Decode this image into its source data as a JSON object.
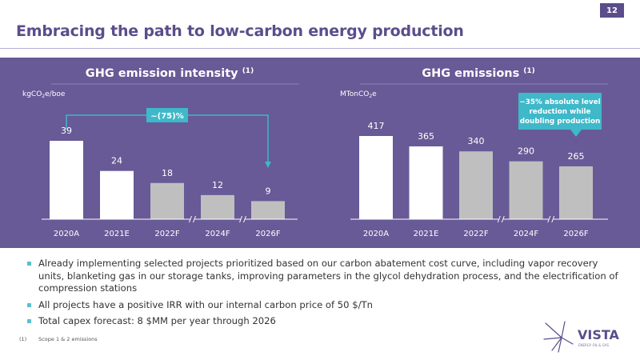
{
  "page": {
    "number": "12",
    "title": "Embracing the path to low-carbon energy production"
  },
  "chart_data": [
    {
      "type": "bar",
      "title": "GHG emission intensity",
      "title_note": "(1)",
      "unit": "kgCO",
      "unit_sub": "2",
      "unit_suffix": "e/boe",
      "categories": [
        "2020A",
        "2021E",
        "2022F",
        "2024F",
        "2026F"
      ],
      "values": [
        39,
        24,
        18,
        12,
        9
      ],
      "ylim": [
        0,
        39
      ],
      "bar_colors": [
        "#ffffff",
        "#ffffff",
        "#bfbfbf",
        "#bfbfbf",
        "#bfbfbf"
      ],
      "axis_breaks_after": [
        2,
        3
      ],
      "annotation": "~(75)%"
    },
    {
      "type": "bar",
      "title": "GHG emissions",
      "title_note": "(1)",
      "unit": "MTonCO",
      "unit_sub": "2",
      "unit_suffix": "e",
      "categories": [
        "2020A",
        "2021E",
        "2022F",
        "2024F",
        "2026F"
      ],
      "values": [
        417,
        365,
        340,
        290,
        265
      ],
      "ylim": [
        0,
        417
      ],
      "bar_colors": [
        "#ffffff",
        "#ffffff",
        "#bfbfbf",
        "#bfbfbf",
        "#bfbfbf"
      ],
      "axis_breaks_after": [
        2,
        3
      ],
      "callout": [
        "~35% absolute level",
        "reduction while",
        "doubling production"
      ]
    }
  ],
  "colors": {
    "purple": "#675a96",
    "title_purple": "#5b4d8c",
    "teal": "#3fb8c9",
    "grey_bar": "#bfbfbf"
  },
  "bullets": [
    "Already implementing selected projects prioritized based on our carbon abatement cost curve, including vapor recovery units, blanketing gas in our storage tanks, improving parameters in the glycol dehydration process, and the electrification of compression stations",
    "All projects have a positive IRR with our internal carbon price of 50 $/Tn",
    "Total capex forecast: 8 $MM per year through 2026"
  ],
  "footnote": {
    "number": "(1)",
    "text": "Scope 1 & 2 emissions"
  },
  "logo": {
    "name": "VISTA",
    "tagline": "ENERGY OIL & GAS"
  }
}
